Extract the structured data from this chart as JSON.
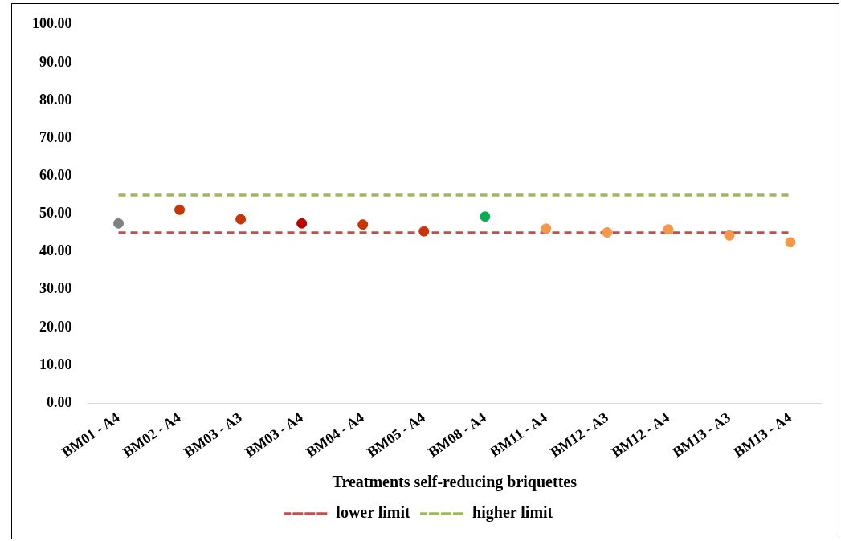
{
  "chart_data": {
    "type": "scatter",
    "xlabel": "Treatments self-reducing briquettes",
    "categories": [
      "BM01 - A4",
      "BM02 - A4",
      "BM03 - A3",
      "BM03 - A4",
      "BM04 - A4",
      "BM05 - A4",
      "BM08 - A4",
      "BM11 - A4",
      "BM12 - A3",
      "BM12 - A4",
      "BM13 - A3",
      "BM13 - A4"
    ],
    "ylim": [
      0,
      100
    ],
    "yticks": [
      {
        "value": 0,
        "label": "0.00"
      },
      {
        "value": 10,
        "label": "10.00"
      },
      {
        "value": 20,
        "label": "20.00"
      },
      {
        "value": 30,
        "label": "30.00"
      },
      {
        "value": 40,
        "label": "40.00"
      },
      {
        "value": 50,
        "label": "50.00"
      },
      {
        "value": 60,
        "label": "60.00"
      },
      {
        "value": 70,
        "label": "70.00"
      },
      {
        "value": 80,
        "label": "80.00"
      },
      {
        "value": 90,
        "label": "90.00"
      },
      {
        "value": 100,
        "label": "100.00"
      }
    ],
    "grid": false,
    "legend": "bottom",
    "series": [
      {
        "marker": "circle",
        "colors": [
          "#808080",
          "#cc3300",
          "#cc3300",
          "#c00000",
          "#cc3300",
          "#cc3300",
          "#00b050",
          "#f79646",
          "#f79646",
          "#f79646",
          "#f79646",
          "#f79646"
        ],
        "values": [
          47.5,
          51.1,
          48.6,
          47.5,
          47.2,
          45.4,
          49.3,
          46.1,
          45.1,
          45.9,
          44.3,
          42.5
        ]
      },
      {
        "type": "line",
        "name": "lower limit",
        "color": "#c0504d",
        "line_style": "dashed",
        "marker": "none",
        "values": [
          45,
          45,
          45,
          45,
          45,
          45,
          45,
          45,
          45,
          45,
          45,
          45
        ]
      },
      {
        "type": "line",
        "name": "higher limit",
        "color": "#9bbb59",
        "line_style": "dashed",
        "marker": "none",
        "values": [
          55,
          55,
          55,
          55,
          55,
          55,
          55,
          55,
          55,
          55,
          55,
          55
        ]
      }
    ]
  }
}
